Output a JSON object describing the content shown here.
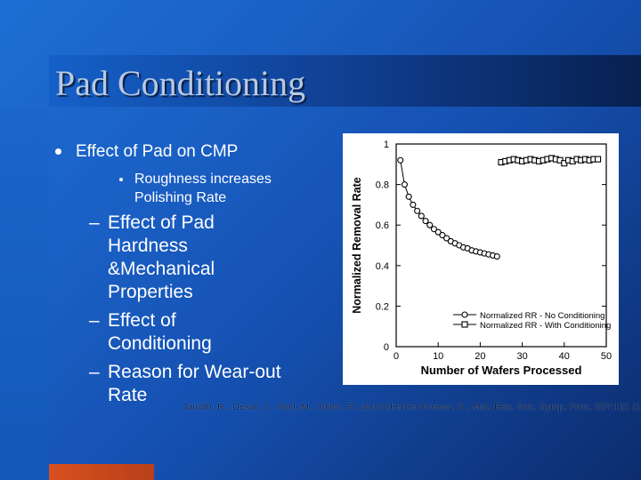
{
  "slide": {
    "title": "Pad Conditioning",
    "bullet": "Effect of Pad on CMP",
    "sub_bullet": [
      "Roughness increases",
      "Polishing Rate"
    ],
    "dash_items": [
      [
        "Effect of Pad",
        "Hardness",
        "&Mechanical",
        "Properties"
      ],
      [
        "Effect of",
        "Conditioning"
      ],
      [
        "Reason for Wear-out",
        "Rate"
      ]
    ],
    "citation": "Jairath, R., Desai, Y., Stell, M., Tolles, R. and Scherber-Brewer, D., Mat. Res. Soc. Symp. Proc. 337:121 (1994)."
  },
  "chart_data": {
    "type": "scatter",
    "xlabel": "Number of Wafers Processed",
    "ylabel": "Normalized Removal Rate",
    "xlim": [
      0,
      50
    ],
    "ylim": [
      0,
      1
    ],
    "xticks": [
      "0",
      "10",
      "20",
      "30",
      "40",
      "50"
    ],
    "yticks": [
      "0",
      "0.2",
      "0.4",
      "0.6",
      "0.8",
      "1"
    ],
    "legend_position": "bottom-right",
    "series": [
      {
        "name": "Normalized RR - No Conditioning",
        "marker": "circle",
        "x": [
          1,
          2,
          3,
          4,
          5,
          6,
          7,
          8,
          9,
          10,
          11,
          12,
          13,
          14,
          15,
          16,
          17,
          18,
          19,
          20,
          21,
          22,
          23,
          24
        ],
        "y": [
          0.92,
          0.8,
          0.74,
          0.7,
          0.67,
          0.645,
          0.62,
          0.6,
          0.58,
          0.565,
          0.55,
          0.535,
          0.52,
          0.51,
          0.5,
          0.49,
          0.485,
          0.475,
          0.47,
          0.465,
          0.46,
          0.455,
          0.45,
          0.445
        ]
      },
      {
        "name": "Normalized RR - With Conditioning",
        "marker": "square",
        "x": [
          25,
          26,
          27,
          28,
          29,
          30,
          31,
          32,
          33,
          34,
          35,
          36,
          37,
          38,
          39,
          40,
          41,
          42,
          43,
          44,
          45,
          46,
          47,
          48
        ],
        "y": [
          0.91,
          0.915,
          0.92,
          0.925,
          0.92,
          0.915,
          0.92,
          0.925,
          0.92,
          0.915,
          0.92,
          0.925,
          0.93,
          0.925,
          0.92,
          0.905,
          0.92,
          0.915,
          0.925,
          0.92,
          0.925,
          0.92,
          0.925,
          0.925
        ]
      }
    ]
  }
}
